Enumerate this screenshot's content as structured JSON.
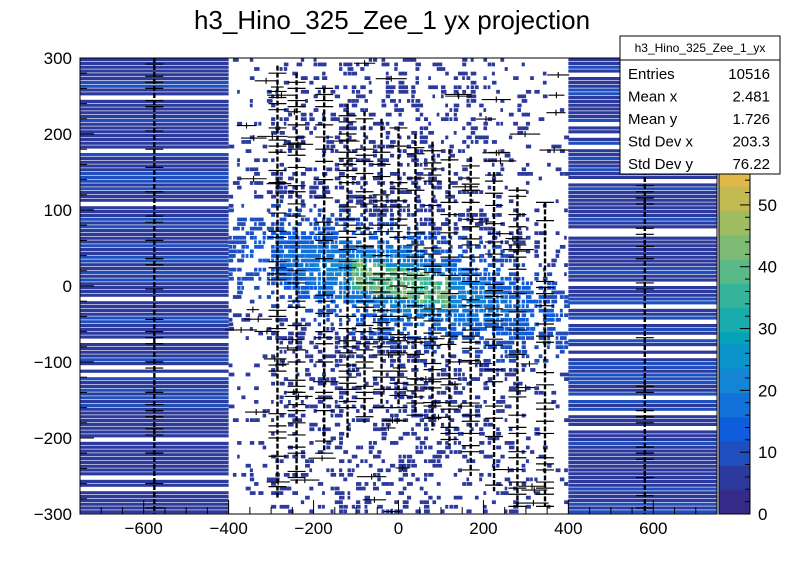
{
  "chart_data": {
    "type": "heatmap",
    "title": "h3_Hino_325_Zee_1 yx projection",
    "xlabel": "",
    "ylabel": "",
    "xlim": [
      -750,
      750
    ],
    "ylim": [
      -300,
      300
    ],
    "x_ticks": [
      -600,
      -400,
      -200,
      0,
      200,
      400,
      600
    ],
    "y_ticks": [
      -300,
      -200,
      -100,
      0,
      100,
      200,
      300
    ],
    "z_ticks": [
      0,
      10,
      20,
      30,
      40,
      50
    ],
    "zlim": [
      0,
      55
    ],
    "palette": [
      "#352a87",
      "#2c3a9d",
      "#1f4fbf",
      "#0f5cdd",
      "#1371da",
      "#1485d4",
      "#0b94c9",
      "#06a2b9",
      "#18acac",
      "#36b49b",
      "#59ba87",
      "#7dbb74",
      "#a0bc60",
      "#c2ba51",
      "#e1b94a"
    ],
    "x_columns": [
      {
        "x": -575,
        "y_extent": [
          -300,
          300
        ],
        "level": 3
      },
      {
        "x": -285,
        "y_extent": [
          -280,
          290
        ],
        "level": 4
      },
      {
        "x": -240,
        "y_extent": [
          -260,
          280
        ],
        "level": 5
      },
      {
        "x": -175,
        "y_extent": [
          -220,
          260
        ],
        "level": 6
      },
      {
        "x": -120,
        "y_extent": [
          -200,
          240
        ],
        "level": 7
      },
      {
        "x": -80,
        "y_extent": [
          -180,
          230
        ],
        "level": 8
      },
      {
        "x": -40,
        "y_extent": [
          -160,
          220
        ],
        "level": 9
      },
      {
        "x": 0,
        "y_extent": [
          -160,
          210
        ],
        "level": 10
      },
      {
        "x": 40,
        "y_extent": [
          -170,
          200
        ],
        "level": 10
      },
      {
        "x": 80,
        "y_extent": [
          -190,
          190
        ],
        "level": 9
      },
      {
        "x": 120,
        "y_extent": [
          -210,
          180
        ],
        "level": 8
      },
      {
        "x": 170,
        "y_extent": [
          -250,
          170
        ],
        "level": 7
      },
      {
        "x": 225,
        "y_extent": [
          -270,
          150
        ],
        "level": 6
      },
      {
        "x": 280,
        "y_extent": [
          -290,
          130
        ],
        "level": 5
      },
      {
        "x": 345,
        "y_extent": [
          -290,
          110
        ],
        "level": 4
      },
      {
        "x": 580,
        "y_extent": [
          -300,
          300
        ],
        "level": 3
      }
    ]
  },
  "stats": {
    "title": "h3_Hino_325_Zee_1_yx",
    "rows": [
      {
        "label": "Entries",
        "value": "10516"
      },
      {
        "label": "Mean x",
        "value": "2.481"
      },
      {
        "label": "Mean y",
        "value": "1.726"
      },
      {
        "label": "Std Dev x",
        "value": "203.3"
      },
      {
        "label": "Std Dev y",
        "value": "76.22"
      }
    ]
  }
}
